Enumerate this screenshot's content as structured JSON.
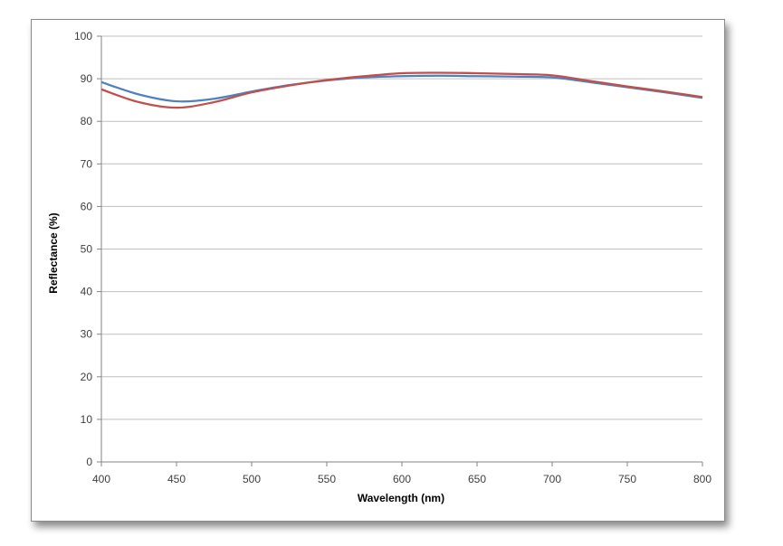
{
  "chart_data": {
    "type": "line",
    "title": "",
    "xlabel": "Wavelength (nm)",
    "ylabel": "Reflectance (%)",
    "xlim": [
      400,
      800
    ],
    "ylim": [
      0,
      100
    ],
    "x_ticks": [
      "400",
      "450",
      "500",
      "550",
      "600",
      "650",
      "700",
      "750",
      "800"
    ],
    "y_ticks": [
      "0",
      "10",
      "20",
      "30",
      "40",
      "50",
      "60",
      "70",
      "80",
      "90",
      "100"
    ],
    "grid": "horizontal",
    "legend": "none",
    "series": [
      {
        "color": "#4f81bd",
        "x": [
          400,
          425,
          450,
          475,
          500,
          525,
          550,
          575,
          600,
          625,
          650,
          675,
          700,
          725,
          750,
          775,
          800
        ],
        "y": [
          89.2,
          86.3,
          84.7,
          85.3,
          87.0,
          88.5,
          89.6,
          90.3,
          90.6,
          90.7,
          90.6,
          90.5,
          90.3,
          89.2,
          88.0,
          86.8,
          85.5
        ]
      },
      {
        "color": "#c0504d",
        "x": [
          400,
          425,
          450,
          475,
          500,
          525,
          550,
          575,
          600,
          625,
          650,
          675,
          700,
          725,
          750,
          775,
          800
        ],
        "y": [
          87.5,
          84.5,
          83.2,
          84.5,
          86.8,
          88.4,
          89.7,
          90.6,
          91.3,
          91.4,
          91.3,
          91.1,
          90.8,
          89.5,
          88.2,
          87.0,
          85.7
        ]
      }
    ]
  }
}
